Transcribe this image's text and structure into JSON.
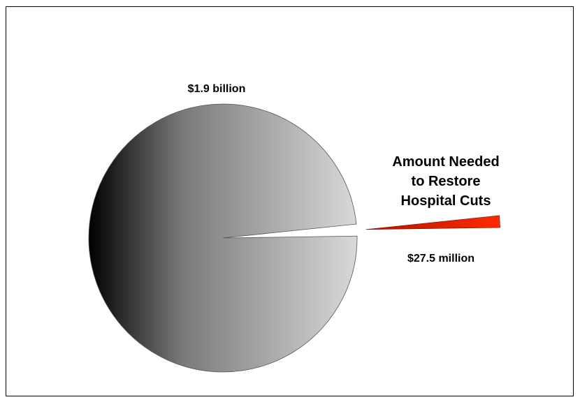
{
  "chart_data": {
    "type": "pie",
    "title": "",
    "slices": [
      {
        "label": "$1.9 billion",
        "value": 1900000000,
        "color_light": "#d9d9d9",
        "color_dark": "#000000"
      },
      {
        "label": "$27.5 million",
        "value": 27500000,
        "color_light": "#ff2a00",
        "color_dark": "#b31200",
        "exploded": true
      }
    ],
    "annotation": [
      "Amount Needed",
      "to Restore",
      "Hospital Cuts"
    ]
  }
}
